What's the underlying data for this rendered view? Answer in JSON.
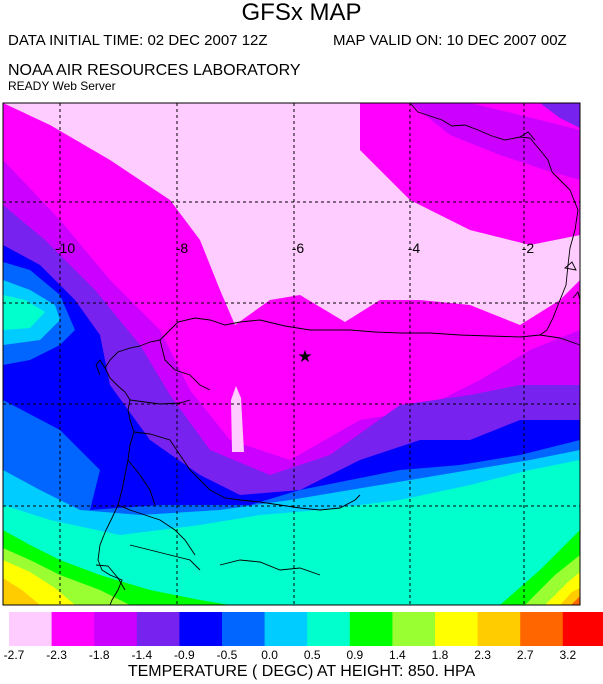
{
  "header": {
    "title": "GFSx MAP",
    "initial_time": "DATA INITIAL TIME: 02 DEC 2007 12Z",
    "valid_time": "MAP VALID ON: 10 DEC 2007 00Z",
    "organization": "NOAA AIR RESOURCES LABORATORY",
    "server": "READY Web Server"
  },
  "map": {
    "longitude_labels": [
      "-10",
      "-8",
      "-6",
      "-4",
      "-2"
    ],
    "marker": "star",
    "colors": {
      "c1": "#ffccff",
      "c2": "#ff00ff",
      "c3": "#cc00ff",
      "c4": "#7722ee",
      "c5": "#0000ff",
      "c6": "#0066ff",
      "c7": "#00ccff",
      "c8": "#00ffcc",
      "c9": "#00ff00",
      "c10": "#99ff33",
      "c11": "#ffff00",
      "c12": "#ffcc00",
      "c13": "#ff6600",
      "c14": "#ff0000"
    }
  },
  "legend": {
    "title": "TEMPERATURE ( DEGC) AT HEIGHT: 850. HPA",
    "tick_labels": [
      "-2.7",
      "-2.3",
      "-1.8",
      "-1.4",
      "-0.9",
      "-0.5",
      "0.0",
      "0.5",
      "0.9",
      "1.4",
      "1.8",
      "2.3",
      "2.7",
      "3.2"
    ],
    "colors": [
      "#ffccff",
      "#ff00ff",
      "#cc00ff",
      "#7722ee",
      "#0000ff",
      "#0066ff",
      "#00ccff",
      "#00ffcc",
      "#00ff00",
      "#99ff33",
      "#ffff00",
      "#ffcc00",
      "#ff6600",
      "#ff0000"
    ]
  }
}
